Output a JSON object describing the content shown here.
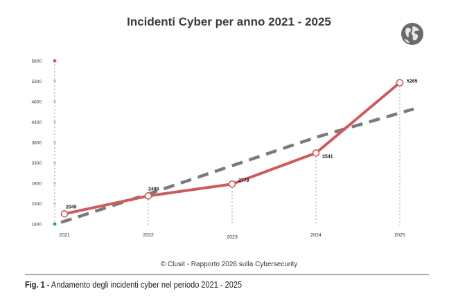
{
  "figure": {
    "copyright": "© Clusit - Rapporto 2026 sulla Cybersecurity",
    "caption_number": "Fig. 1 -",
    "caption_text": " Andamento degli incidenti cyber nel periodo 2021 - 2025",
    "logo_icon": "globe-icon"
  },
  "chart_data": {
    "type": "line",
    "title": "Incidenti Cyber per anno 2021 - 2025",
    "xlabel": "",
    "ylabel": "",
    "categories": [
      "2021",
      "2022",
      "2023",
      "2024",
      "2025"
    ],
    "series": [
      {
        "name": "",
        "values": [
          2049,
          2489,
          2779,
          3541,
          5265
        ],
        "value_labels": [
          "2049",
          "2489",
          "2779",
          "3541",
          "5265"
        ],
        "color": "#cf5a5d",
        "style": "solid"
      },
      {
        "name": "",
        "type": "trendline",
        "values": [
          1840,
          2535,
          3230,
          3925,
          4620
        ],
        "color": "#7a7a7a",
        "style": "dashed"
      }
    ],
    "y_ticks": [
      "1800",
      "2300",
      "2800",
      "3300",
      "3800",
      "4300",
      "4800",
      "5300",
      "5800"
    ],
    "ylim": [
      1800,
      5800
    ],
    "grid": false,
    "legend": "none",
    "colors": {
      "line": "#cf5a5d",
      "trend": "#7a7a7a",
      "guide": "#9a9a9a",
      "axis_dot": "#c8c8c8",
      "axis_top": "#cf5a5d",
      "axis_bottom": "#2aa198"
    }
  }
}
